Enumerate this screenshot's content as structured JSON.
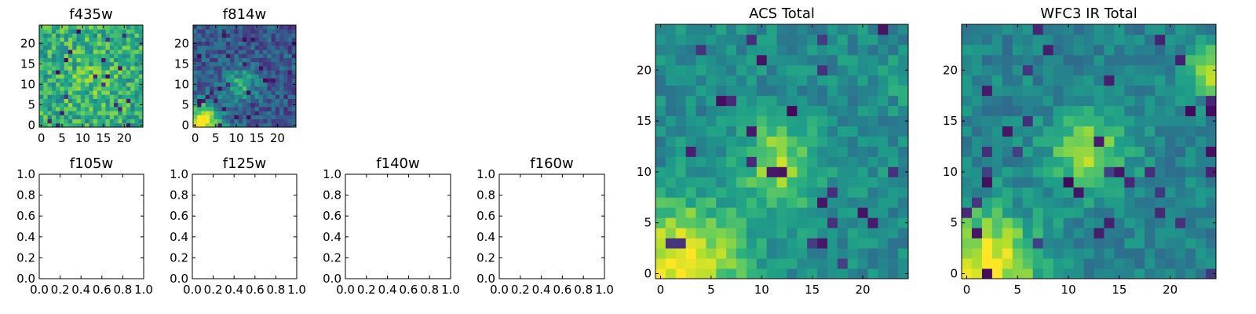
{
  "chart_data": [
    {
      "type": "heatmap",
      "panel": "f435w",
      "title": "f435w",
      "xlim": [
        -0.5,
        24.5
      ],
      "ylim": [
        -0.5,
        24.5
      ],
      "xticks": [
        0,
        5,
        10,
        15,
        20
      ],
      "yticks": [
        0,
        5,
        10,
        15,
        20
      ],
      "grid_size": [
        25,
        25
      ],
      "colormap": "viridis",
      "pattern": "mostly high values with scattered low pixels"
    },
    {
      "type": "heatmap",
      "panel": "f814w",
      "title": "f814w",
      "xlim": [
        -0.5,
        24.5
      ],
      "ylim": [
        -0.5,
        24.5
      ],
      "xticks": [
        0,
        5,
        10,
        15,
        20
      ],
      "yticks": [
        0,
        5,
        10,
        15,
        20
      ],
      "grid_size": [
        25,
        25
      ],
      "colormap": "viridis",
      "pattern": "bright concentration at lower-left and centre, darker elsewhere"
    },
    {
      "type": "line",
      "panel": "f105w",
      "title": "f105w",
      "xlim": [
        0,
        1
      ],
      "ylim": [
        0,
        1
      ],
      "xticks": [
        "0.0",
        "0.2",
        "0.4",
        "0.6",
        "0.8",
        "1.0"
      ],
      "yticks": [
        "0.0",
        "0.2",
        "0.4",
        "0.6",
        "0.8",
        "1.0"
      ],
      "series": []
    },
    {
      "type": "line",
      "panel": "f125w",
      "title": "f125w",
      "xlim": [
        0,
        1
      ],
      "ylim": [
        0,
        1
      ],
      "xticks": [
        "0.0",
        "0.2",
        "0.4",
        "0.6",
        "0.8",
        "1.0"
      ],
      "yticks": [
        "0.0",
        "0.2",
        "0.4",
        "0.6",
        "0.8",
        "1.0"
      ],
      "series": []
    },
    {
      "type": "line",
      "panel": "f140w",
      "title": "f140w",
      "xlim": [
        0,
        1
      ],
      "ylim": [
        0,
        1
      ],
      "xticks": [
        "0.0",
        "0.2",
        "0.4",
        "0.6",
        "0.8",
        "1.0"
      ],
      "yticks": [
        "0.0",
        "0.2",
        "0.4",
        "0.6",
        "0.8",
        "1.0"
      ],
      "series": []
    },
    {
      "type": "line",
      "panel": "f160w",
      "title": "f160w",
      "xlim": [
        0,
        1
      ],
      "ylim": [
        0,
        1
      ],
      "xticks": [
        "0.0",
        "0.2",
        "0.4",
        "0.6",
        "0.8",
        "1.0"
      ],
      "yticks": [
        "0.0",
        "0.2",
        "0.4",
        "0.6",
        "0.8",
        "1.0"
      ],
      "series": []
    },
    {
      "type": "heatmap",
      "panel": "acs-total",
      "title": "ACS Total",
      "xlim": [
        -0.5,
        24.5
      ],
      "ylim": [
        -0.5,
        24.5
      ],
      "xticks": [
        0,
        5,
        10,
        15,
        20
      ],
      "yticks": [
        0,
        5,
        10,
        15,
        20
      ],
      "grid_size": [
        25,
        25
      ],
      "colormap": "viridis",
      "pattern": "bright lower-left corner, bright diagonal streak near centre, mid-level elsewhere"
    },
    {
      "type": "heatmap",
      "panel": "wfc3-ir-total",
      "title": "WFC3 IR Total",
      "xlim": [
        -0.5,
        24.5
      ],
      "ylim": [
        -0.5,
        24.5
      ],
      "xticks": [
        0,
        5,
        10,
        15,
        20
      ],
      "yticks": [
        0,
        5,
        10,
        15,
        20
      ],
      "grid_size": [
        25,
        25
      ],
      "colormap": "viridis",
      "pattern": "bright lower-left corner, bright blob near centre, bright right edge near y=20"
    }
  ]
}
